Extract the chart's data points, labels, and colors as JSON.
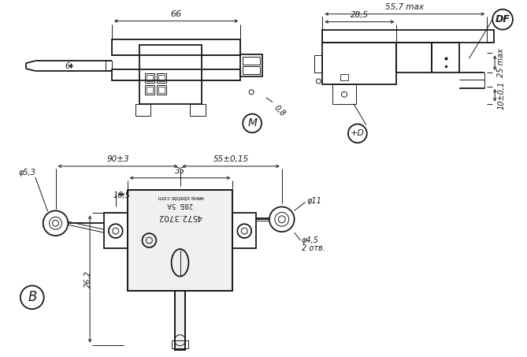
{
  "bg_color": "#ffffff",
  "line_color": "#1a1a1a",
  "figsize": [
    6.69,
    4.53
  ],
  "dpi": 100,
  "annotations": {
    "view_M": "M",
    "view_B": "B",
    "view_DF": "DF",
    "view_plusD": "+D",
    "dim_66": "66",
    "dim_6": "6",
    "dim_0_8": "0,8",
    "dim_55_7": "55,7 max",
    "dim_28_5": "28,5",
    "dim_25": "25 max",
    "dim_10_01": "10±0,1",
    "dim_90_3": "90±3",
    "dim_55_015": "55±0,15",
    "dim_35": "35",
    "dim_phi5_3": "φ5,3",
    "dim_16_5": "16,5",
    "dim_phi11": "φ11",
    "dim_phi4_5": "φ4,5",
    "dim_2otv": "2 отв.",
    "dim_26_2": "26,2",
    "label_4572": "4572.3702",
    "label_28b": "28Б",
    "label_5a": "5A",
    "label_web": "www.vbelde.com"
  }
}
